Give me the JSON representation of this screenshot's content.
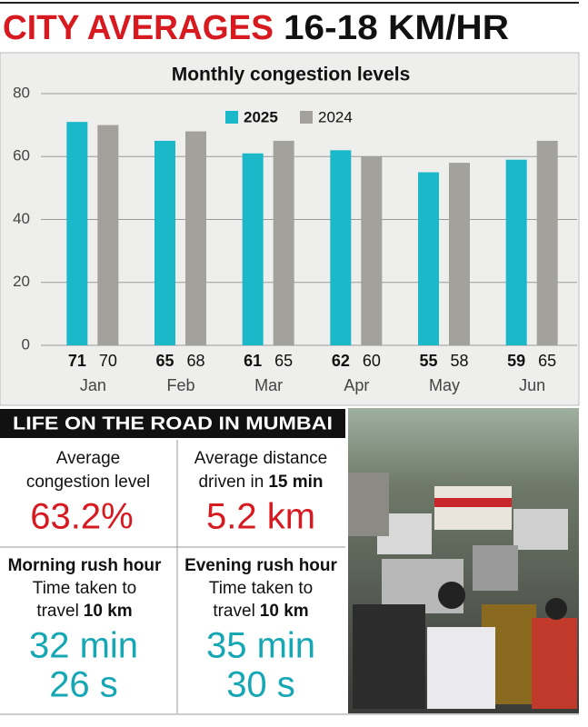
{
  "header": {
    "title": "CITY AVERAGES",
    "subtitle": "16-18 KM/HR"
  },
  "chart_data": {
    "type": "bar",
    "title": "Monthly congestion levels",
    "categories": [
      "Jan",
      "Feb",
      "Mar",
      "Apr",
      "May",
      "Jun"
    ],
    "series": [
      {
        "name": "2025",
        "color": "#1ab8c8",
        "values": [
          71,
          65,
          61,
          62,
          55,
          59
        ]
      },
      {
        "name": "2024",
        "color": "#a3a19b",
        "values": [
          70,
          68,
          65,
          60,
          58,
          65
        ]
      }
    ],
    "ylim": [
      0,
      80
    ],
    "yticks": [
      0,
      20,
      40,
      60,
      80
    ],
    "grid": true
  },
  "panel": {
    "title": "LIFE ON THE ROAD IN MUMBAI",
    "stats": [
      {
        "label": [
          "Average",
          "congestion level"
        ],
        "value": [
          "63.2%"
        ]
      },
      {
        "label": [
          "Average distance",
          "driven in",
          "15 min"
        ],
        "value": [
          "5.2 km"
        ]
      },
      {
        "label": [
          "Morning rush hour",
          "Time taken to",
          "travel",
          "10 km"
        ],
        "value": [
          "32 min",
          "26 s"
        ]
      },
      {
        "label": [
          "Evening rush hour",
          "Time taken to",
          "travel",
          "10 km"
        ],
        "value": [
          "35 min",
          "30 s"
        ]
      }
    ]
  }
}
